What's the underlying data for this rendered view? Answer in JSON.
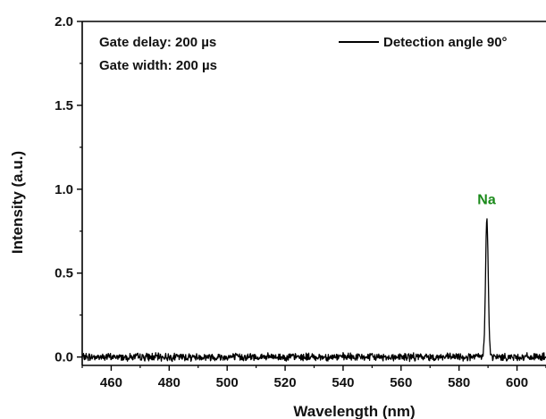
{
  "chart_data": {
    "type": "line",
    "title": "",
    "xlabel": "Wavelength (nm)",
    "ylabel": "Intensity (a.u.)",
    "xlim": [
      450,
      610
    ],
    "ylim": [
      -0.05,
      2.0
    ],
    "x_ticks": [
      460,
      480,
      500,
      520,
      540,
      560,
      580,
      600
    ],
    "x_tick_labels": [
      "460",
      "480",
      "500",
      "520",
      "540",
      "560",
      "580",
      "600"
    ],
    "y_ticks": [
      0.0,
      0.5,
      1.0,
      1.5,
      2.0
    ],
    "y_tick_labels": [
      "0.0",
      "0.5",
      "1.0",
      "1.5",
      "2.0"
    ],
    "grid": false,
    "legend_position": "top-right",
    "annotations": {
      "gate_delay": "Gate delay: 200 µs",
      "gate_width": "Gate width: 200 µs"
    },
    "peak_label": {
      "text": "Na",
      "x": 589.5,
      "y": 0.88,
      "color": "#1a8a1a"
    },
    "series": [
      {
        "name": "Detection angle 90°",
        "color": "#000000",
        "baseline": 0.0,
        "noise_amplitude": 0.018,
        "peak": {
          "center": 589.6,
          "height": 0.82,
          "fwhm": 1.1
        }
      }
    ]
  }
}
